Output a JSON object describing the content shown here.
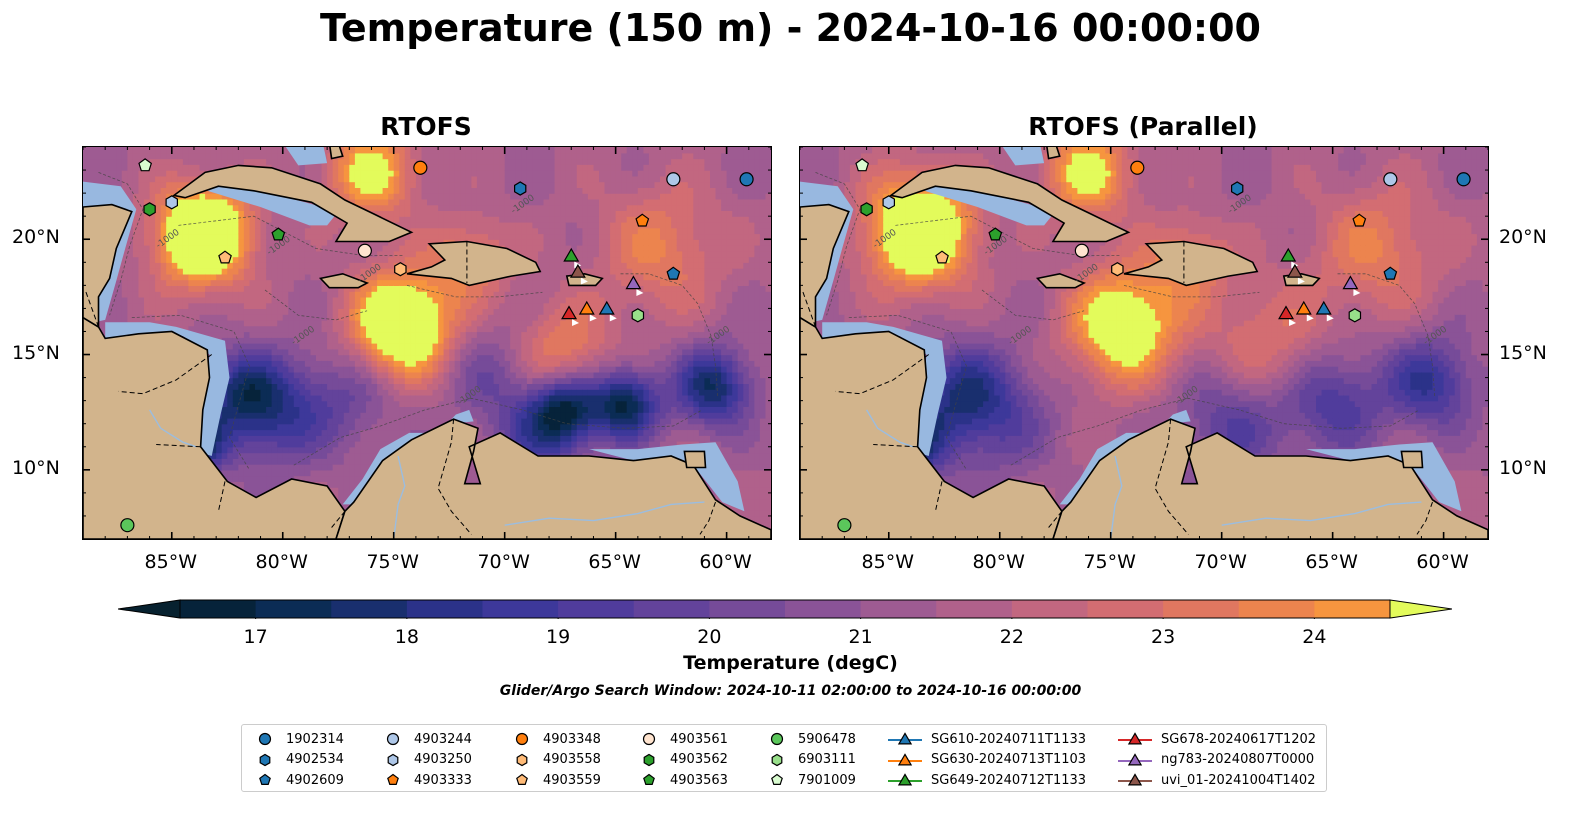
{
  "title": "Temperature (150 m) - 2024-10-16 00:00:00",
  "panels": [
    {
      "title": "RTOFS"
    },
    {
      "title": "RTOFS (Parallel)"
    }
  ],
  "map": {
    "lon_range": [
      -89,
      -58
    ],
    "lat_range": [
      7,
      24
    ],
    "lon_ticks": [
      "85°W",
      "80°W",
      "75°W",
      "70°W",
      "65°W",
      "60°W"
    ],
    "lat_ticks": [
      "20°N",
      "15°N",
      "10°N"
    ],
    "contour_label": "-1000",
    "colors": {
      "land": "#d2b48c",
      "shelf": "#98b8e0",
      "coast": "#000000"
    }
  },
  "colorbar": {
    "ticks": [
      "17",
      "18",
      "19",
      "20",
      "21",
      "22",
      "23",
      "24"
    ],
    "range": [
      16.5,
      24.5
    ],
    "step": 0.5,
    "colors": [
      "#06233a",
      "#0b2c55",
      "#192f6e",
      "#2b3289",
      "#3d389a",
      "#503c9c",
      "#63439b",
      "#764b99",
      "#8a5397",
      "#9e5b92",
      "#b0618b",
      "#c26780",
      "#d36d72",
      "#e07760",
      "#ec844e",
      "#f6953f",
      "#fbab3a",
      "#f8c73f",
      "#eee350"
    ],
    "extend_low": "#07212f",
    "extend_high": "#e3fb5b",
    "label": "Temperature (degC)"
  },
  "search_window": "Glider/Argo Search Window: 2024-10-11 02:00:00 to 2024-10-16 00:00:00",
  "legend": {
    "argo": [
      {
        "id": "1902314",
        "shape": "circle",
        "color": "#1f77b4"
      },
      {
        "id": "4902534",
        "shape": "hexagon",
        "color": "#1f77b4"
      },
      {
        "id": "4902609",
        "shape": "pentagon",
        "color": "#1f77b4"
      },
      {
        "id": "4903244",
        "shape": "circle",
        "color": "#aec7e8"
      },
      {
        "id": "4903250",
        "shape": "hexagon",
        "color": "#aec7e8"
      },
      {
        "id": "4903333",
        "shape": "pentagon",
        "color": "#ff7f0e"
      },
      {
        "id": "4903348",
        "shape": "circle",
        "color": "#ff7f0e"
      },
      {
        "id": "4903558",
        "shape": "hexagon",
        "color": "#ffbb78"
      },
      {
        "id": "4903559",
        "shape": "pentagon",
        "color": "#ffbb78"
      },
      {
        "id": "4903561",
        "shape": "circle",
        "color": "#ffe4cf"
      },
      {
        "id": "4903562",
        "shape": "hexagon",
        "color": "#2ca02c"
      },
      {
        "id": "4903563",
        "shape": "pentagon",
        "color": "#2ca02c"
      },
      {
        "id": "5906478",
        "shape": "circle",
        "color": "#5bc75b"
      },
      {
        "id": "6903111",
        "shape": "hexagon",
        "color": "#98df8a"
      },
      {
        "id": "7901009",
        "shape": "pentagon",
        "color": "#d9fbd0"
      }
    ],
    "gliders": [
      {
        "id": "SG610-20240711T1133",
        "color": "#1f77b4"
      },
      {
        "id": "SG630-20240713T1103",
        "color": "#ff7f0e"
      },
      {
        "id": "SG649-20240712T1133",
        "color": "#2ca02c"
      },
      {
        "id": "SG678-20240617T1202",
        "color": "#d62728"
      },
      {
        "id": "ng783-20240807T0000",
        "color": "#9467bd"
      },
      {
        "id": "uvi_01-20241004T1402",
        "color": "#8c564b"
      }
    ]
  },
  "stations": [
    {
      "id": "1902314",
      "lon": -59.1,
      "lat": 22.6
    },
    {
      "id": "4903244",
      "lon": -62.4,
      "lat": 22.6
    },
    {
      "id": "4902534",
      "lon": -69.3,
      "lat": 22.2
    },
    {
      "id": "4903348",
      "lon": -73.8,
      "lat": 23.1
    },
    {
      "id": "7901009",
      "lon": -86.2,
      "lat": 23.2
    },
    {
      "id": "4903250",
      "lon": -85.0,
      "lat": 21.6
    },
    {
      "id": "4903562",
      "lon": -86.0,
      "lat": 21.3
    },
    {
      "id": "4903563",
      "lon": -80.2,
      "lat": 20.2
    },
    {
      "id": "4903559",
      "lon": -82.6,
      "lat": 19.2
    },
    {
      "id": "4903561",
      "lon": -76.3,
      "lat": 19.5
    },
    {
      "id": "4903558",
      "lon": -74.7,
      "lat": 18.7
    },
    {
      "id": "4903333",
      "lon": -63.8,
      "lat": 20.8
    },
    {
      "id": "4902609",
      "lon": -62.4,
      "lat": 18.5
    },
    {
      "id": "6903111",
      "lon": -64.0,
      "lat": 16.7
    },
    {
      "id": "5906478",
      "lon": -87.0,
      "lat": 7.6
    }
  ],
  "glider_positions": [
    {
      "id": "SG649-20240712T1133",
      "lon": -67.0,
      "lat": 19.3
    },
    {
      "id": "uvi_01-20241004T1402",
      "lon": -66.7,
      "lat": 18.6
    },
    {
      "id": "ng783-20240807T0000",
      "lon": -64.2,
      "lat": 18.1
    },
    {
      "id": "SG678-20240617T1202",
      "lon": -67.1,
      "lat": 16.8
    },
    {
      "id": "SG630-20240713T1103",
      "lon": -66.3,
      "lat": 17.0
    },
    {
      "id": "SG610-20240711T1133",
      "lon": -65.4,
      "lat": 17.0
    }
  ]
}
